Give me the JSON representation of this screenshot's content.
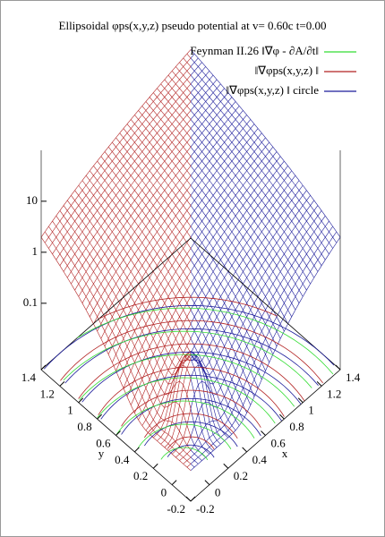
{
  "chart_data": {
    "type": "surface",
    "title": "Ellipsoidal φps(x,y,z) pseudo potential at v= 0.60c t=0.00",
    "series": [
      {
        "name": "Feynman II.26 ‖∇φ - ∂A/∂t‖",
        "color": "#33dd33"
      },
      {
        "name": "‖∇φps(x,y,z) ‖",
        "color": "#b22222"
      },
      {
        "name": "‖∇φps(x,y,z) ‖ circle",
        "color": "#1a1a9a"
      }
    ],
    "xlabel": "x",
    "ylabel": "y",
    "xlim": [
      -0.2,
      1.4
    ],
    "ylim": [
      -0.2,
      1.4
    ],
    "zlim": [
      0.005,
      100
    ],
    "zlog": true,
    "xticks": [
      -0.2,
      0,
      0.2,
      0.4,
      0.6,
      0.8,
      1,
      1.2,
      1.4
    ],
    "yticks": [
      -0.2,
      0,
      0.2,
      0.4,
      0.6,
      0.8,
      1,
      1.2,
      1.4
    ],
    "zticks": [
      0.1,
      1,
      10
    ]
  }
}
